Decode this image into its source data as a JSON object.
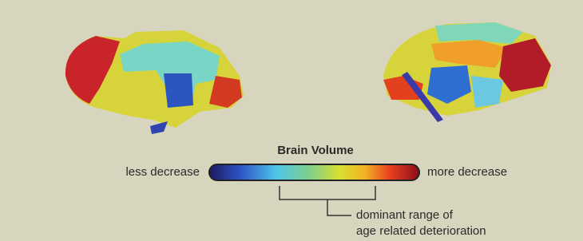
{
  "figure": {
    "title": "Brain Volume",
    "scale": {
      "low_label": "less decrease",
      "high_label": "more decrease"
    },
    "annotation": {
      "lines": [
        "dominant range of",
        "age related deterioration"
      ]
    }
  }
}
